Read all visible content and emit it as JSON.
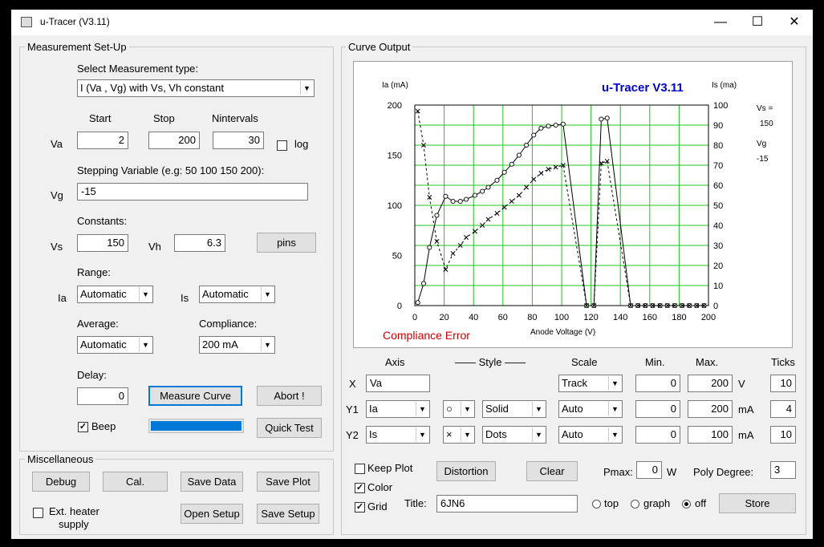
{
  "window": {
    "title": "u-Tracer (V3.11)",
    "minimize": "—",
    "maximize": "☐",
    "close": "✕"
  },
  "setup": {
    "legend": "Measurement Set-Up",
    "select_label": "Select Measurement type:",
    "measurement_type": "I (Va , Vg) with Vs, Vh constant",
    "start_label": "Start",
    "stop_label": "Stop",
    "nintervals_label": "Nintervals",
    "va_label": "Va",
    "va_start": "2",
    "va_stop": "200",
    "va_nintervals": "30",
    "log_label": "log",
    "stepping_label": "Stepping Variable (e.g: 50 100 150 200):",
    "vg_label": "Vg",
    "vg_value": "-15",
    "constants_label": "Constants:",
    "vs_label": "Vs",
    "vs_value": "150",
    "vh_label": "Vh",
    "vh_value": "6.3",
    "pins_label": "pins",
    "range_label": "Range:",
    "ia_label": "Ia",
    "ia_range": "Automatic",
    "is_label": "Is",
    "is_range": "Automatic",
    "average_label": "Average:",
    "average_value": "Automatic",
    "compliance_label": "Compliance:",
    "compliance_value": "200 mA",
    "delay_label": "Delay:",
    "delay_value": "0",
    "measure_label": "Measure Curve",
    "abort_label": "Abort !",
    "beep_label": "Beep",
    "quicktest_label": "Quick Test",
    "progress": 1.0,
    "progress_color": "#0078d7"
  },
  "misc": {
    "legend": "Miscellaneous",
    "debug": "Debug",
    "cal": "Cal.",
    "save_data": "Save Data",
    "save_plot": "Save Plot",
    "ext_heater_1": "Ext. heater",
    "ext_heater_2": "supply",
    "open_setup": "Open Setup",
    "save_setup": "Save Setup"
  },
  "curve": {
    "legend": "Curve Output",
    "axis_head": "Axis",
    "style_head": "—— Style ——",
    "scale_head": "Scale",
    "min_head": "Min.",
    "max_head": "Max.",
    "ticks_head": "Ticks",
    "x_label": "X",
    "x_var": "Va",
    "x_scale": "Track",
    "x_min": "0",
    "x_max": "200",
    "x_unit": "V",
    "x_ticks": "10",
    "y1_label": "Y1",
    "y1_var": "Ia",
    "y1_marker": "○",
    "y1_line": "Solid",
    "y1_scale": "Auto",
    "y1_min": "0",
    "y1_max": "200",
    "y1_unit": "mA",
    "y1_ticks": "4",
    "y2_label": "Y2",
    "y2_var": "Is",
    "y2_marker": "×",
    "y2_line": "Dots",
    "y2_scale": "Auto",
    "y2_min": "0",
    "y2_max": "100",
    "y2_unit": "mA",
    "y2_ticks": "10",
    "keep_plot": "Keep Plot",
    "distortion": "Distortion",
    "clear": "Clear",
    "pmax_label": "Pmax:",
    "pmax_value": "0",
    "pmax_unit": "W",
    "poly_label": "Poly Degree:",
    "poly_value": "3",
    "color_label": "Color",
    "grid_label": "Grid",
    "title_label": "Title:",
    "title_value": "6JN6",
    "top_label": "top",
    "graph_label": "graph",
    "off_label": "off",
    "store": "Store"
  },
  "chart_data": {
    "type": "line",
    "title": "u-Tracer V3.11",
    "xlabel": "Anode Voltage (V)",
    "ylabel": "Ia (mA)",
    "y2label": "Is (ma)",
    "xlim": [
      0,
      200
    ],
    "ylim": [
      0,
      200
    ],
    "y2lim": [
      0,
      100
    ],
    "xticks": [
      0,
      20,
      40,
      60,
      80,
      100,
      120,
      140,
      160,
      180,
      200
    ],
    "yticks": [
      0,
      50,
      100,
      150,
      200
    ],
    "y2ticks": [
      0,
      10,
      20,
      30,
      40,
      50,
      60,
      70,
      80,
      90,
      100
    ],
    "grid": true,
    "grid_color": "#22c322",
    "title_color": "#0000cc",
    "error_text": "Compliance Error",
    "error_color": "#cc0000",
    "annotations": {
      "vs_label": "Vs =",
      "vs_value": "150",
      "vg_label": "Vg",
      "vg_value": "-15"
    },
    "x": [
      2,
      6,
      10,
      15,
      21,
      26,
      31,
      35,
      41,
      46,
      50,
      56,
      61,
      66,
      71,
      76,
      81,
      86,
      91,
      96,
      101,
      106,
      111,
      117,
      122,
      127,
      131,
      136,
      141,
      147,
      152,
      157,
      162,
      167,
      172,
      177,
      182,
      187,
      192,
      197,
      200
    ],
    "series": [
      {
        "name": "Ia",
        "axis": "y1",
        "marker": "circle",
        "line": "solid",
        "points": [
          [
            2,
            3
          ],
          [
            6,
            22
          ],
          [
            10,
            58
          ],
          [
            15,
            90
          ],
          [
            21,
            109
          ],
          [
            26,
            104
          ],
          [
            31,
            104
          ],
          [
            35,
            106
          ],
          [
            41,
            110
          ],
          [
            46,
            114
          ],
          [
            50,
            118
          ],
          [
            56,
            125
          ],
          [
            61,
            133
          ],
          [
            66,
            141
          ],
          [
            71,
            150
          ],
          [
            76,
            160
          ],
          [
            81,
            170
          ],
          [
            86,
            177
          ],
          [
            91,
            179
          ],
          [
            96,
            180
          ],
          [
            101,
            181
          ],
          [
            117,
            0
          ],
          [
            122,
            0
          ],
          [
            127,
            186
          ],
          [
            131,
            187
          ],
          [
            147,
            0
          ],
          [
            152,
            0
          ],
          [
            157,
            0
          ],
          [
            162,
            0
          ],
          [
            167,
            0
          ],
          [
            172,
            0
          ],
          [
            177,
            0
          ],
          [
            182,
            0
          ],
          [
            187,
            0
          ],
          [
            192,
            0
          ],
          [
            197,
            0
          ]
        ]
      },
      {
        "name": "Is",
        "axis": "y2",
        "marker": "x",
        "line": "dots",
        "points": [
          [
            2,
            97
          ],
          [
            6,
            80
          ],
          [
            10,
            54
          ],
          [
            15,
            32
          ],
          [
            21,
            18
          ],
          [
            26,
            26
          ],
          [
            31,
            30
          ],
          [
            35,
            34
          ],
          [
            41,
            37
          ],
          [
            46,
            40
          ],
          [
            50,
            43
          ],
          [
            56,
            46
          ],
          [
            61,
            49
          ],
          [
            66,
            52
          ],
          [
            71,
            55
          ],
          [
            76,
            59
          ],
          [
            81,
            63
          ],
          [
            86,
            66
          ],
          [
            91,
            68
          ],
          [
            96,
            69
          ],
          [
            101,
            70
          ],
          [
            117,
            0
          ],
          [
            122,
            0
          ],
          [
            127,
            71
          ],
          [
            131,
            72
          ],
          [
            147,
            0
          ],
          [
            152,
            0
          ],
          [
            157,
            0
          ],
          [
            162,
            0
          ],
          [
            167,
            0
          ],
          [
            172,
            0
          ],
          [
            177,
            0
          ],
          [
            182,
            0
          ],
          [
            187,
            0
          ],
          [
            192,
            0
          ],
          [
            197,
            0
          ]
        ]
      }
    ]
  }
}
